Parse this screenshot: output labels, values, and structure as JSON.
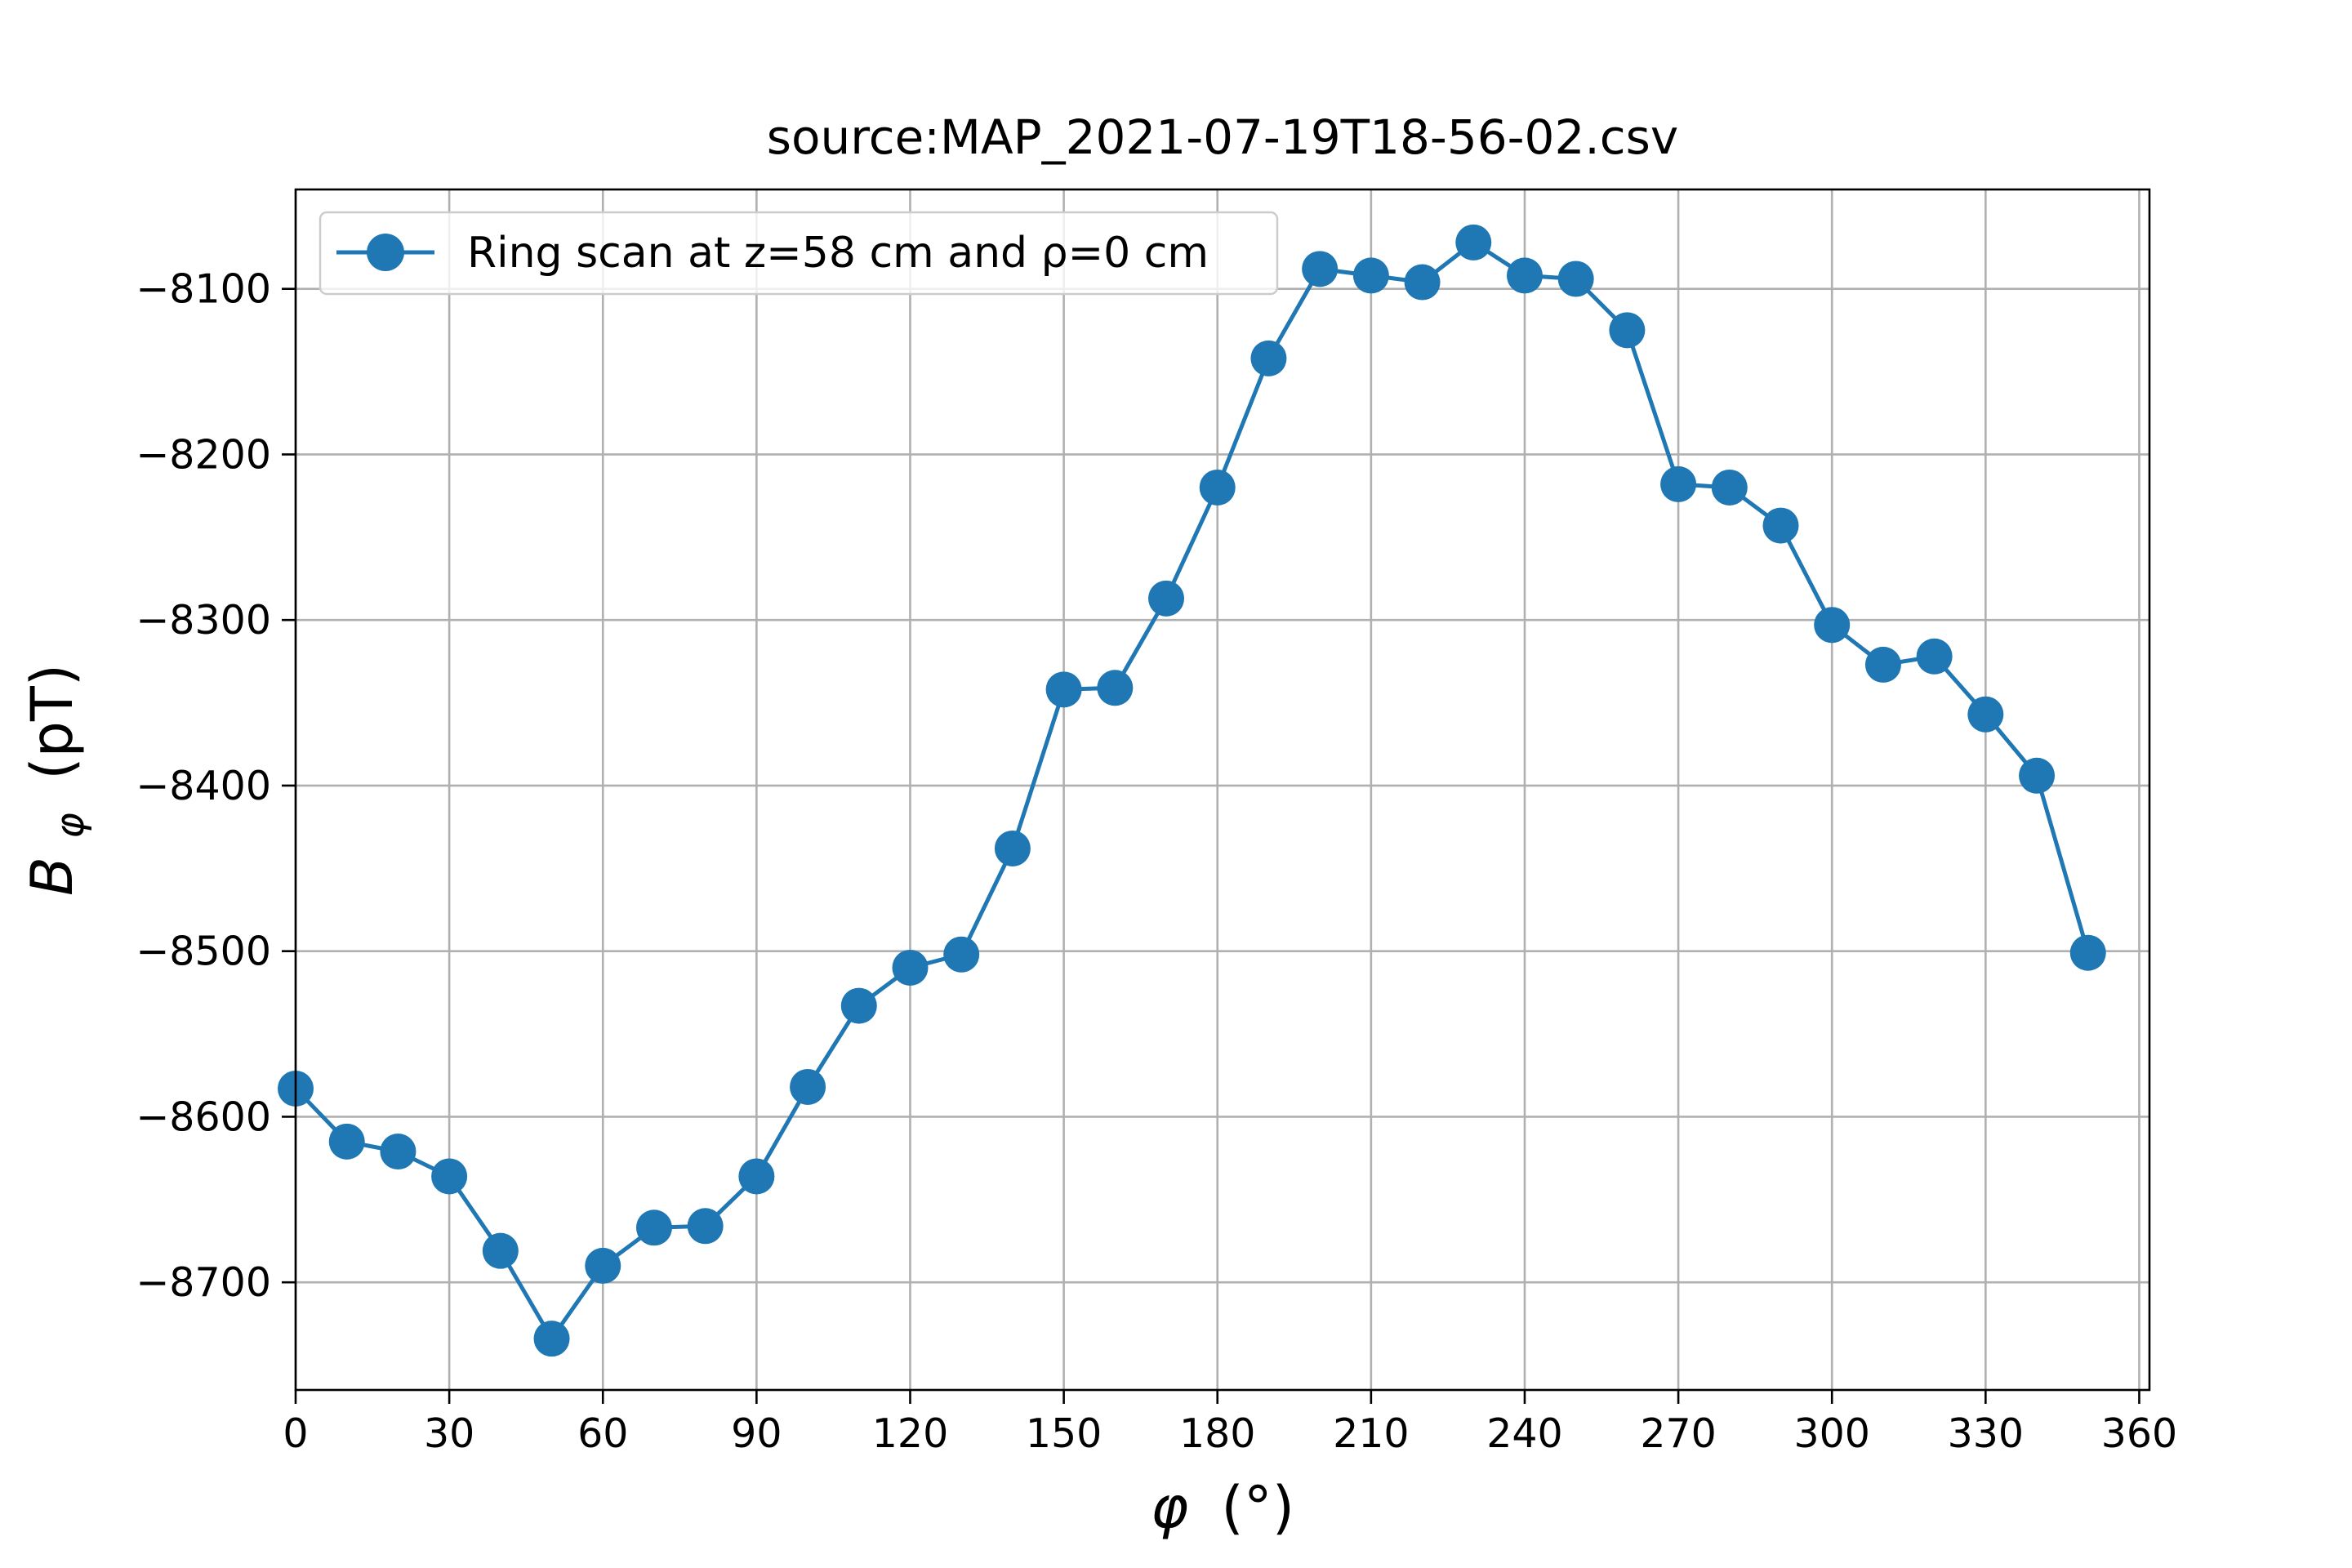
{
  "chart_data": {
    "type": "line",
    "title": "source:MAP_2021-07-19T18-56-02.csv",
    "xlabel_main": "φ",
    "xlabel_unit": "(°)",
    "ylabel_main": "B",
    "ylabel_sub": "φ",
    "ylabel_unit": "(pT)",
    "xlim": [
      0,
      362
    ],
    "ylim": [
      -8765,
      -8040
    ],
    "xticks": [
      0,
      30,
      60,
      90,
      120,
      150,
      180,
      210,
      240,
      270,
      300,
      330,
      360
    ],
    "yticks": [
      -8700,
      -8600,
      -8500,
      -8400,
      -8300,
      -8200,
      -8100
    ],
    "ytick_labels": [
      "−8700",
      "−8600",
      "−8500",
      "−8400",
      "−8300",
      "−8200",
      "−8100"
    ],
    "grid": true,
    "legend_position": "upper-left",
    "series": [
      {
        "name": "Ring scan at z=58 cm and ρ=0 cm",
        "color": "#1f77b4",
        "marker": "circle",
        "x": [
          0,
          10,
          20,
          30,
          40,
          50,
          60,
          70,
          80,
          90,
          100,
          110,
          120,
          130,
          140,
          150,
          160,
          170,
          180,
          190,
          200,
          210,
          220,
          230,
          240,
          250,
          260,
          270,
          280,
          290,
          300,
          310,
          320,
          330,
          340,
          350
        ],
        "y": [
          -8583,
          -8615,
          -8621,
          -8636,
          -8681,
          -8734,
          -8690,
          -8667,
          -8666,
          -8636,
          -8582,
          -8533,
          -8510,
          -8502,
          -8438,
          -8342,
          -8341,
          -8287,
          -8220,
          -8142,
          -8088,
          -8092,
          -8096,
          -8072,
          -8092,
          -8094,
          -8125,
          -8218,
          -8220,
          -8243,
          -8303,
          -8327,
          -8322,
          -8357,
          -8394,
          -8501
        ]
      }
    ]
  }
}
